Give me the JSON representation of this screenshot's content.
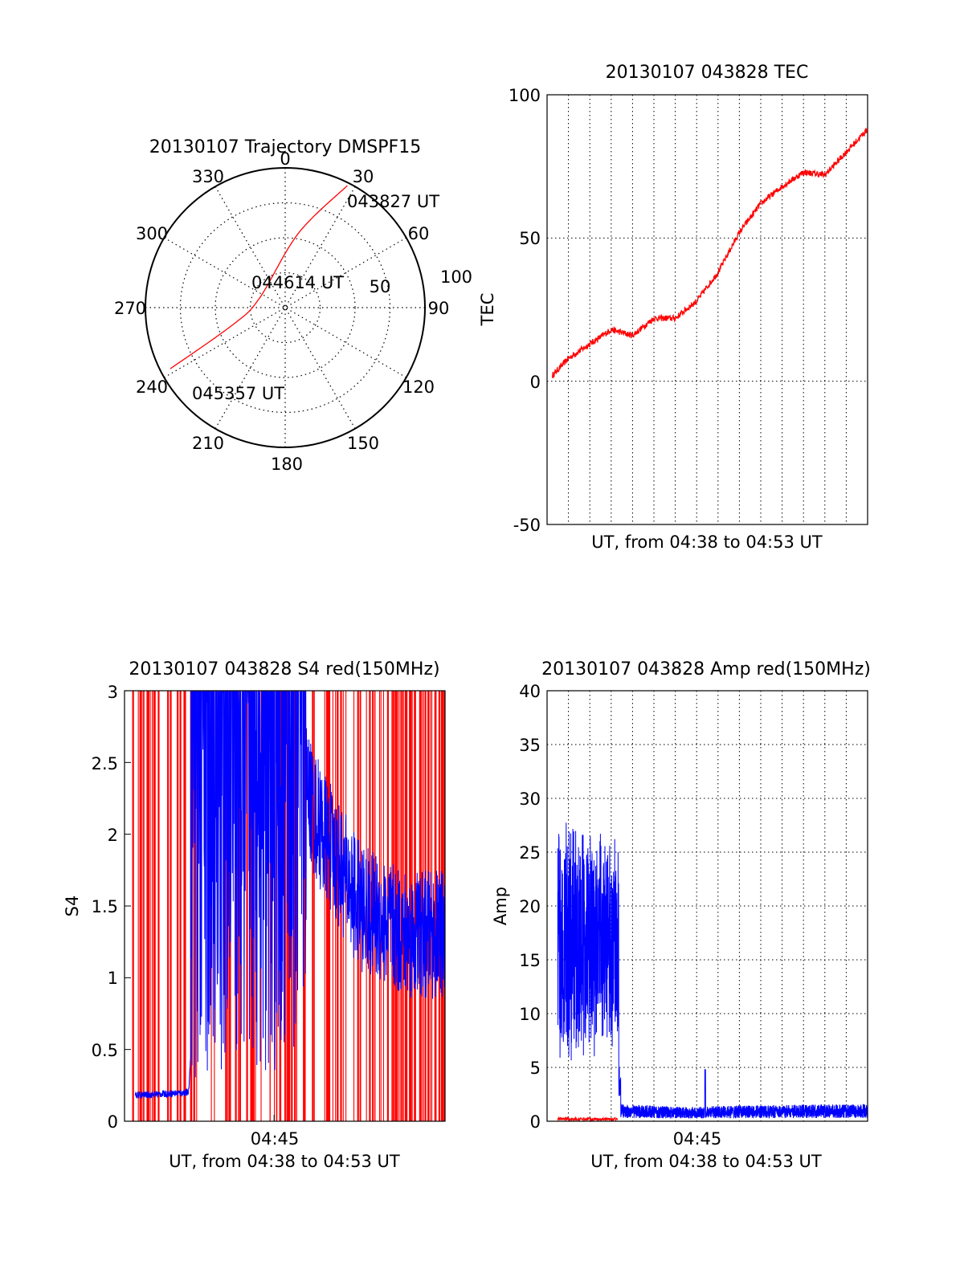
{
  "colors": {
    "red": "#ff0000",
    "blue": "#0000ff",
    "axis": "#000000",
    "grid": "#000000"
  },
  "chart_data": [
    {
      "type": "polar",
      "title": "20130107 Trajectory DMSPF15",
      "azimuth_labels": [
        "0",
        "30",
        "60",
        "90",
        "120",
        "150",
        "180",
        "210",
        "240",
        "270",
        "300",
        "330"
      ],
      "radius_labels": [
        "50",
        "100"
      ],
      "grid": true,
      "annotations": [
        "043827 UT",
        "044614 UT",
        "045357 UT"
      ],
      "series": [
        {
          "color": "red",
          "points": [
            [
              27,
              100
            ],
            [
              10,
              55
            ],
            [
              290,
              20
            ],
            [
              252,
              40
            ],
            [
              242,
              95
            ]
          ]
        }
      ]
    },
    {
      "type": "line",
      "title": "20130107 043828 TEC",
      "xlabel": "UT, from 04:38 to 04:53 UT",
      "ylabel": "TEC",
      "xlim": [
        "04:38",
        "04:53"
      ],
      "ylim": [
        -50,
        100
      ],
      "yticks": [
        "-50",
        "0",
        "50",
        "100"
      ],
      "grid": true,
      "series": [
        {
          "color": "red",
          "x": [
            "04:38",
            "04:39",
            "04:40",
            "04:41",
            "04:42",
            "04:43",
            "04:44",
            "04:45",
            "04:46",
            "04:47",
            "04:48",
            "04:49",
            "04:50",
            "04:51",
            "04:52",
            "04:53"
          ],
          "values": [
            0,
            8,
            13,
            18,
            16,
            22,
            22,
            28,
            38,
            52,
            62,
            68,
            73,
            72,
            80,
            88
          ]
        }
      ]
    },
    {
      "type": "line",
      "title": "20130107 043828 S4 red(150MHz)",
      "xlabel": "UT, from 04:38 to 04:53 UT",
      "ylabel": "S4",
      "xlim": [
        "04:38",
        "04:53"
      ],
      "ylim": [
        0,
        3
      ],
      "xticks": [
        "04:45"
      ],
      "yticks": [
        "0",
        "0.5",
        "1",
        "1.5",
        "2",
        "2.5",
        "3"
      ],
      "grid": false,
      "series": [
        {
          "color": "red",
          "description_values": "saturated spikes 0 to 3 across the full interval"
        },
        {
          "color": "blue",
          "x": [
            "04:38.5",
            "04:41",
            "04:42",
            "04:44",
            "04:45",
            "04:47",
            "04:49",
            "04:51",
            "04:53"
          ],
          "values": [
            0.18,
            0.2,
            3,
            3,
            3,
            2.1,
            1.5,
            1.3,
            1.3
          ]
        }
      ]
    },
    {
      "type": "line",
      "title": "20130107 043828 Amp red(150MHz)",
      "xlabel": "UT, from 04:38 to 04:53 UT",
      "ylabel": "Amp",
      "xlim": [
        "04:38",
        "04:53"
      ],
      "ylim": [
        0,
        40
      ],
      "xticks": [
        "04:45"
      ],
      "yticks": [
        "0",
        "5",
        "10",
        "15",
        "20",
        "25",
        "30",
        "35",
        "40"
      ],
      "grid": true,
      "series": [
        {
          "color": "blue",
          "x": [
            "04:38.5",
            "04:40",
            "04:41.3",
            "04:41.4",
            "04:45",
            "04:46",
            "04:53"
          ],
          "values": [
            17,
            17,
            17,
            1,
            0.8,
            0.9,
            1
          ]
        },
        {
          "color": "red",
          "x": [
            "04:38.5",
            "04:41.3"
          ],
          "values": [
            0.2,
            0.2
          ]
        }
      ]
    }
  ]
}
